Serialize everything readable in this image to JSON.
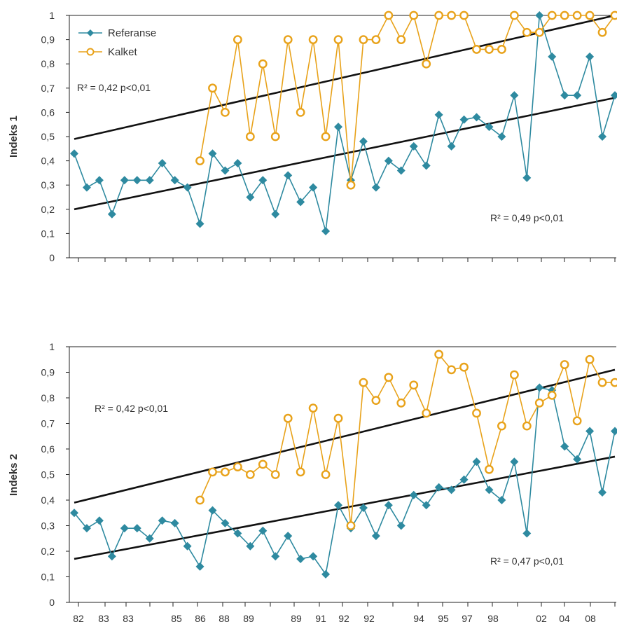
{
  "chart_data": [
    {
      "type": "line",
      "ylabel": "Indeks 1",
      "ylim": [
        0,
        1
      ],
      "ytick_labels": [
        "0",
        "0,1",
        "0,2",
        "0,3",
        "0,4",
        "0,5",
        "0,6",
        "0,7",
        "0,8",
        "0,9",
        "1"
      ],
      "xtick_labels": [],
      "legend": {
        "placement": "top-left",
        "entries": [
          "Referanse",
          "Kalket"
        ]
      },
      "colors": {
        "Referanse": "#2e8aa0",
        "Kalket": "#e8a21a",
        "trend": "#111111"
      },
      "series": [
        {
          "name": "Referanse",
          "values": [
            0.43,
            0.29,
            0.32,
            0.18,
            0.32,
            0.32,
            0.32,
            0.39,
            0.32,
            0.29,
            0.14,
            0.43,
            0.36,
            0.39,
            0.25,
            0.32,
            0.18,
            0.34,
            0.23,
            0.29,
            0.11,
            0.54,
            0.32,
            0.48,
            0.29,
            0.4,
            0.36,
            0.46,
            0.38,
            0.59,
            0.46,
            0.57,
            0.58,
            0.54,
            0.5,
            0.67,
            0.33,
            1.0,
            0.83,
            0.67,
            0.67,
            0.83,
            0.5,
            0.67
          ]
        },
        {
          "name": "Kalket",
          "values": [
            null,
            null,
            null,
            null,
            null,
            null,
            null,
            null,
            null,
            null,
            0.4,
            0.7,
            0.6,
            0.9,
            0.5,
            0.8,
            0.5,
            0.9,
            0.6,
            0.9,
            0.5,
            0.9,
            0.3,
            0.9,
            0.9,
            1.0,
            0.9,
            1.0,
            0.8,
            1.0,
            1.0,
            1.0,
            0.86,
            0.86,
            0.86,
            1.0,
            0.93,
            0.93,
            1.0,
            1.0,
            1.0,
            1.0,
            0.93,
            1.0
          ]
        }
      ],
      "trendlines": [
        {
          "series": "Kalket",
          "start": 0.49,
          "end": 1.0
        },
        {
          "series": "Referanse",
          "start": 0.2,
          "end": 0.66
        }
      ],
      "annotations": [
        "R² = 0,42 p<0,01",
        "R² = 0,49 p<0,01"
      ]
    },
    {
      "type": "line",
      "ylabel": "Indeks 2",
      "ylim": [
        0,
        1
      ],
      "ytick_labels": [
        "0",
        "0,1",
        "0,2",
        "0,3",
        "0,4",
        "0,5",
        "0,6",
        "0,7",
        "0,8",
        "0,9",
        "1"
      ],
      "xtick_labels": [
        "82",
        "83",
        "83",
        "85",
        "86",
        "88",
        "89",
        "89",
        "91",
        "92",
        "92",
        "94",
        "95",
        "97",
        "98",
        "02",
        "04",
        "08"
      ],
      "colors": {
        "Referanse": "#2e8aa0",
        "Kalket": "#e8a21a",
        "trend": "#111111"
      },
      "series": [
        {
          "name": "Referanse",
          "values": [
            0.35,
            0.29,
            0.32,
            0.18,
            0.29,
            0.29,
            0.25,
            0.32,
            0.31,
            0.22,
            0.14,
            0.36,
            0.31,
            0.27,
            0.22,
            0.28,
            0.18,
            0.26,
            0.17,
            0.18,
            0.11,
            0.38,
            0.29,
            0.37,
            0.26,
            0.38,
            0.3,
            0.42,
            0.38,
            0.45,
            0.44,
            0.48,
            0.55,
            0.44,
            0.4,
            0.55,
            0.27,
            0.84,
            0.83,
            0.61,
            0.56,
            0.67,
            0.43,
            0.67
          ]
        },
        {
          "name": "Kalket",
          "values": [
            null,
            null,
            null,
            null,
            null,
            null,
            null,
            null,
            null,
            null,
            0.4,
            0.51,
            0.51,
            0.53,
            0.5,
            0.54,
            0.5,
            0.72,
            0.51,
            0.76,
            0.5,
            0.72,
            0.3,
            0.86,
            0.79,
            0.88,
            0.78,
            0.85,
            0.74,
            0.97,
            0.91,
            0.92,
            0.74,
            0.52,
            0.69,
            0.89,
            0.69,
            0.78,
            0.81,
            0.93,
            0.71,
            0.95,
            0.86,
            0.86
          ]
        }
      ],
      "trendlines": [
        {
          "series": "Kalket",
          "start": 0.39,
          "end": 0.91
        },
        {
          "series": "Referanse",
          "start": 0.17,
          "end": 0.57
        }
      ],
      "annotations": [
        "R² = 0,42 p<0,01",
        "R² = 0,47 p<0,01"
      ]
    }
  ]
}
